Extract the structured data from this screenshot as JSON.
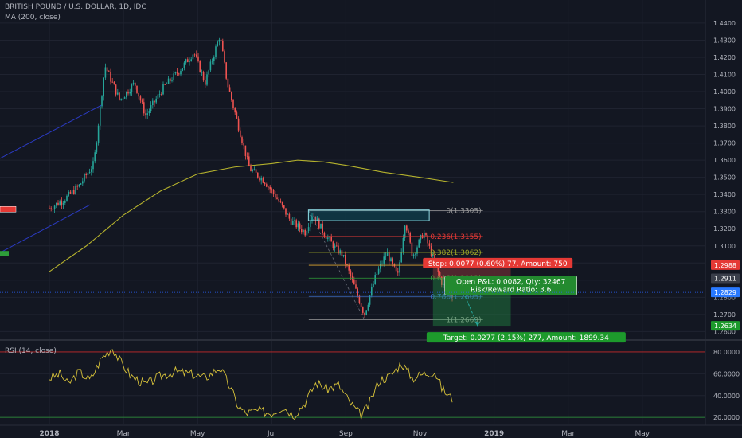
{
  "header": {
    "title": "BRITISH POUND / U.S. DOLLAR, 1D, IDC",
    "ma_legend": "MA (200, close)",
    "rsi_legend": "RSI (14, close)"
  },
  "colors": {
    "background": "#131722",
    "grid": "#1f2330",
    "up": "#26a69a",
    "down": "#ef5350",
    "ma": "#b5b22d",
    "rsi": "#d8c33a",
    "stop": "#ef1a1a",
    "target": "#1d9a2c"
  },
  "chart_data": [
    {
      "type": "candlestick",
      "title": "BRITISH POUND / U.S. DOLLAR, 1D, IDC",
      "x_axis_labels": [
        "2018",
        "Mar",
        "May",
        "Jul",
        "Sep",
        "Nov",
        "2019",
        "Mar",
        "May"
      ],
      "y_tick_labels": [
        "1.4400",
        "1.4300",
        "1.4200",
        "1.4100",
        "1.4000",
        "1.3900",
        "1.3800",
        "1.3700",
        "1.3600",
        "1.3500",
        "1.3400",
        "1.3300",
        "1.3200",
        "1.3100",
        "1.3000",
        "1.2900",
        "1.2800",
        "1.2700",
        "1.2600"
      ],
      "ylim": [
        1.256,
        1.446
      ],
      "ohlc_waypoints": [
        {
          "x": 0.0,
          "close": 1.332
        },
        {
          "x": 0.4,
          "close": 1.337
        },
        {
          "x": 0.8,
          "close": 1.345
        },
        {
          "x": 1.2,
          "close": 1.358
        },
        {
          "x": 1.5,
          "close": 1.415
        },
        {
          "x": 1.9,
          "close": 1.395
        },
        {
          "x": 2.3,
          "close": 1.405
        },
        {
          "x": 2.6,
          "close": 1.386
        },
        {
          "x": 3.1,
          "close": 1.403
        },
        {
          "x": 3.5,
          "close": 1.412
        },
        {
          "x": 3.9,
          "close": 1.423
        },
        {
          "x": 4.2,
          "close": 1.405
        },
        {
          "x": 4.6,
          "close": 1.433
        },
        {
          "x": 4.8,
          "close": 1.405
        },
        {
          "x": 5.1,
          "close": 1.38
        },
        {
          "x": 5.4,
          "close": 1.355
        },
        {
          "x": 5.8,
          "close": 1.348
        },
        {
          "x": 6.1,
          "close": 1.339
        },
        {
          "x": 6.5,
          "close": 1.325
        },
        {
          "x": 6.9,
          "close": 1.318
        },
        {
          "x": 7.1,
          "close": 1.329
        },
        {
          "x": 7.4,
          "close": 1.318
        },
        {
          "x": 7.7,
          "close": 1.309
        },
        {
          "x": 7.9,
          "close": 1.305
        },
        {
          "x": 8.2,
          "close": 1.288
        },
        {
          "x": 8.5,
          "close": 1.27
        },
        {
          "x": 8.8,
          "close": 1.292
        },
        {
          "x": 9.1,
          "close": 1.306
        },
        {
          "x": 9.4,
          "close": 1.292
        },
        {
          "x": 9.6,
          "close": 1.325
        },
        {
          "x": 9.8,
          "close": 1.304
        },
        {
          "x": 10.1,
          "close": 1.318
        },
        {
          "x": 10.4,
          "close": 1.3
        },
        {
          "x": 10.6,
          "close": 1.288
        },
        {
          "x": 10.9,
          "close": 1.281
        }
      ],
      "indicators": {
        "ma_200": {
          "name": "MA (200, close)",
          "points": [
            {
              "x": 0.0,
              "y": 1.295
            },
            {
              "x": 1.0,
              "y": 1.31
            },
            {
              "x": 2.0,
              "y": 1.328
            },
            {
              "x": 3.0,
              "y": 1.342
            },
            {
              "x": 4.0,
              "y": 1.352
            },
            {
              "x": 5.0,
              "y": 1.356
            },
            {
              "x": 6.0,
              "y": 1.358
            },
            {
              "x": 6.7,
              "y": 1.36
            },
            {
              "x": 7.4,
              "y": 1.359
            },
            {
              "x": 8.0,
              "y": 1.357
            },
            {
              "x": 9.0,
              "y": 1.353
            },
            {
              "x": 10.0,
              "y": 1.35
            },
            {
              "x": 10.9,
              "y": 1.347
            }
          ]
        }
      },
      "fibonacci": [
        {
          "ratio": "0",
          "price": 1.3305,
          "label": "0(1.3305)"
        },
        {
          "ratio": "0.236",
          "price": 1.3155,
          "label": "0.236(1.3155)"
        },
        {
          "ratio": "0.382",
          "price": 1.3062,
          "label": "0.382(1.3062)"
        },
        {
          "ratio": "0.5",
          "price": 1.2987,
          "label": "0.5(1.2987)"
        },
        {
          "ratio": "0.618",
          "price": 1.2912,
          "label": "0.618(1.2912)"
        },
        {
          "ratio": "0.786",
          "price": 1.2805,
          "label": "0.786(1.2805)"
        },
        {
          "ratio": "1",
          "price": 1.2669,
          "label": "1(1.2669)"
        }
      ],
      "resistance_zone": {
        "low": 1.3275,
        "high": 1.33
      },
      "position": {
        "entry": 1.2911,
        "stop": 1.2988,
        "target": 1.2634,
        "stop_label": "Stop: 0.0077 (0.60%) 77, Amount: 750",
        "pnl_label": "Open P&L: 0.0082, Qty: 32467",
        "rr_label": "Risk/Reward Ratio: 3.6",
        "target_label": "Target: 0.0277 (2.15%) 277, Amount: 1899.34"
      },
      "price_tags": [
        {
          "value": "1.2988",
          "kind": "stop"
        },
        {
          "value": "1.2911",
          "kind": "entry"
        },
        {
          "value": "1.2829",
          "kind": "current"
        },
        {
          "value": "1.2634",
          "kind": "target"
        }
      ]
    },
    {
      "type": "line",
      "title": "RSI (14, close)",
      "y_tick_labels": [
        "80.0000",
        "60.0000",
        "40.0000",
        "20.0000"
      ],
      "ylim": [
        15,
        88
      ],
      "levels": [
        80,
        20
      ],
      "series": [
        {
          "points": [
            {
              "x": 0.0,
              "y": 56
            },
            {
              "x": 0.3,
              "y": 60
            },
            {
              "x": 0.5,
              "y": 50
            },
            {
              "x": 0.8,
              "y": 62
            },
            {
              "x": 1.1,
              "y": 54
            },
            {
              "x": 1.4,
              "y": 74
            },
            {
              "x": 1.7,
              "y": 84
            },
            {
              "x": 1.9,
              "y": 72
            },
            {
              "x": 2.2,
              "y": 58
            },
            {
              "x": 2.6,
              "y": 50
            },
            {
              "x": 3.0,
              "y": 58
            },
            {
              "x": 3.4,
              "y": 62
            },
            {
              "x": 3.8,
              "y": 60
            },
            {
              "x": 4.2,
              "y": 56
            },
            {
              "x": 4.6,
              "y": 66
            },
            {
              "x": 4.9,
              "y": 46
            },
            {
              "x": 5.1,
              "y": 30
            },
            {
              "x": 5.3,
              "y": 24
            },
            {
              "x": 5.6,
              "y": 26
            },
            {
              "x": 6.0,
              "y": 24
            },
            {
              "x": 6.3,
              "y": 30
            },
            {
              "x": 6.6,
              "y": 22
            },
            {
              "x": 6.9,
              "y": 34
            },
            {
              "x": 7.2,
              "y": 52
            },
            {
              "x": 7.5,
              "y": 46
            },
            {
              "x": 7.8,
              "y": 50
            },
            {
              "x": 8.1,
              "y": 34
            },
            {
              "x": 8.4,
              "y": 22
            },
            {
              "x": 8.6,
              "y": 30
            },
            {
              "x": 8.9,
              "y": 54
            },
            {
              "x": 9.2,
              "y": 58
            },
            {
              "x": 9.5,
              "y": 70
            },
            {
              "x": 9.8,
              "y": 56
            },
            {
              "x": 10.1,
              "y": 60
            },
            {
              "x": 10.4,
              "y": 62
            },
            {
              "x": 10.6,
              "y": 46
            },
            {
              "x": 10.9,
              "y": 36
            }
          ]
        }
      ]
    }
  ]
}
